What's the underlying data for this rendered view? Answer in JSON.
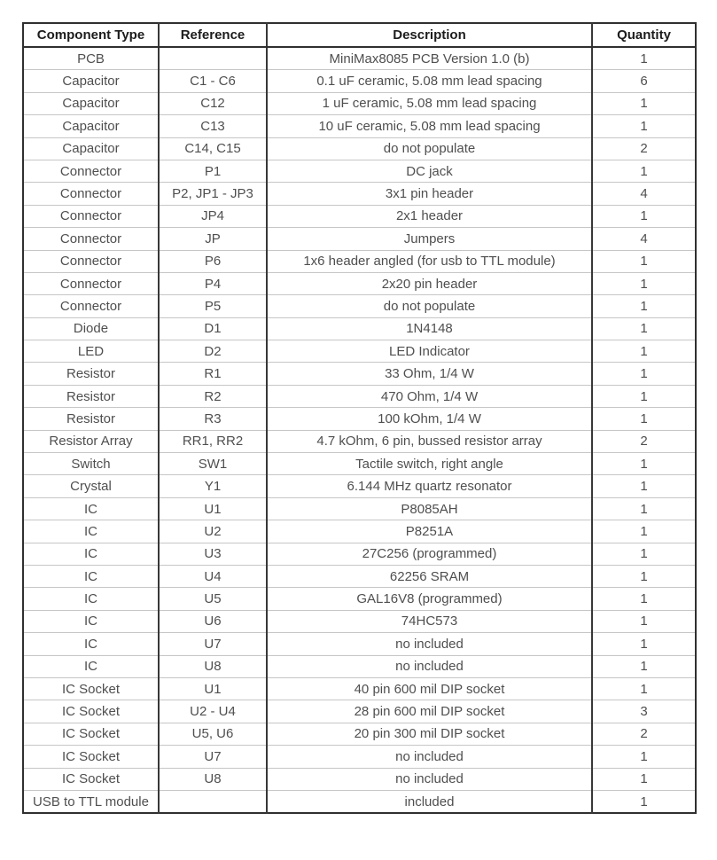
{
  "table": {
    "columns": [
      "Component Type",
      "Reference",
      "Description",
      "Quantity"
    ],
    "rows": [
      [
        "PCB",
        "",
        "MiniMax8085 PCB Version 1.0 (b)",
        "1"
      ],
      [
        "Capacitor",
        "C1 - C6",
        "0.1 uF ceramic, 5.08 mm lead spacing",
        "6"
      ],
      [
        "Capacitor",
        "C12",
        "1 uF ceramic, 5.08 mm lead spacing",
        "1"
      ],
      [
        "Capacitor",
        "C13",
        "10 uF ceramic, 5.08 mm lead spacing",
        "1"
      ],
      [
        "Capacitor",
        "C14, C15",
        "do not populate",
        "2"
      ],
      [
        "Connector",
        "P1",
        "DC jack",
        "1"
      ],
      [
        "Connector",
        "P2, JP1 - JP3",
        "3x1 pin header",
        "4"
      ],
      [
        "Connector",
        "JP4",
        "2x1 header",
        "1"
      ],
      [
        "Connector",
        "JP",
        "Jumpers",
        "4"
      ],
      [
        "Connector",
        "P6",
        "1x6 header angled (for usb to TTL module)",
        "1"
      ],
      [
        "Connector",
        "P4",
        "2x20 pin header",
        "1"
      ],
      [
        "Connector",
        "P5",
        "do not populate",
        "1"
      ],
      [
        "Diode",
        "D1",
        "1N4148",
        "1"
      ],
      [
        "LED",
        "D2",
        "LED Indicator",
        "1"
      ],
      [
        "Resistor",
        "R1",
        "33 Ohm, 1/4 W",
        "1"
      ],
      [
        "Resistor",
        "R2",
        "470 Ohm, 1/4 W",
        "1"
      ],
      [
        "Resistor",
        "R3",
        "100 kOhm, 1/4 W",
        "1"
      ],
      [
        "Resistor Array",
        "RR1, RR2",
        "4.7 kOhm, 6 pin, bussed resistor array",
        "2"
      ],
      [
        "Switch",
        "SW1",
        "Tactile switch, right angle",
        "1"
      ],
      [
        "Crystal",
        "Y1",
        "6.144 MHz quartz resonator",
        "1"
      ],
      [
        "IC",
        "U1",
        "P8085AH",
        "1"
      ],
      [
        "IC",
        "U2",
        "P8251A",
        "1"
      ],
      [
        "IC",
        "U3",
        "27C256 (programmed)",
        "1"
      ],
      [
        "IC",
        "U4",
        "62256 SRAM",
        "1"
      ],
      [
        "IC",
        "U5",
        "GAL16V8 (programmed)",
        "1"
      ],
      [
        "IC",
        "U6",
        "74HC573",
        "1"
      ],
      [
        "IC",
        "U7",
        "no included",
        "1"
      ],
      [
        "IC",
        "U8",
        "no included",
        "1"
      ],
      [
        "IC Socket",
        "U1",
        "40 pin 600 mil DIP socket",
        "1"
      ],
      [
        "IC Socket",
        "U2 - U4",
        "28 pin 600 mil DIP socket",
        "3"
      ],
      [
        "IC Socket",
        "U5, U6",
        "20 pin 300 mil DIP socket",
        "2"
      ],
      [
        "IC Socket",
        "U7",
        "no included",
        "1"
      ],
      [
        "IC Socket",
        "U8",
        "no included",
        "1"
      ],
      [
        "USB to TTL module",
        "",
        "included",
        "1"
      ]
    ],
    "colors": {
      "outer_border": "#2f2f2f",
      "column_border": "#383838",
      "row_separator": "#c6c6c6",
      "header_text": "#1c1c1c",
      "body_text": "#4f4f4f",
      "background": "#ffffff"
    }
  }
}
